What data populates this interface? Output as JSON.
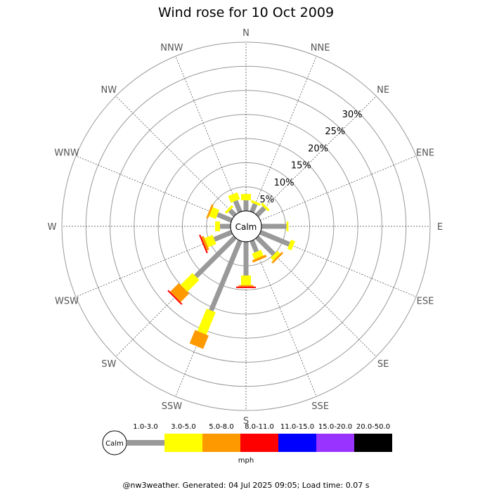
{
  "chart_data": {
    "type": "wind-rose",
    "title": "Wind rose for 10 Oct 2009",
    "directions": [
      "N",
      "NNE",
      "NE",
      "ENE",
      "E",
      "ESE",
      "SE",
      "SSE",
      "S",
      "SSW",
      "SW",
      "WSW",
      "W",
      "WNW",
      "NW",
      "NNW"
    ],
    "radial_ticks": [
      "5%",
      "10%",
      "15%",
      "20%",
      "25%",
      "30%"
    ],
    "radial_tick_values": [
      5,
      10,
      15,
      20,
      25,
      30
    ],
    "r_max_percent": 35,
    "calm_label": "Calm",
    "speed_bins": [
      {
        "label": "1.0-3.0",
        "color": "#999999"
      },
      {
        "label": "3.0-5.0",
        "color": "#ffff00"
      },
      {
        "label": "5.0-8.0",
        "color": "#ff9900"
      },
      {
        "label": "8.0-11.0",
        "color": "#ff0000"
      },
      {
        "label": "11.0-15.0",
        "color": "#0000ff"
      },
      {
        "label": "15.0-20.0",
        "color": "#9933ff"
      },
      {
        "label": "20.0-50.0",
        "color": "#000000"
      }
    ],
    "series": [
      {
        "direction": "N",
        "values": [
          2.2,
          1.3,
          0,
          0,
          0,
          0,
          0
        ]
      },
      {
        "direction": "NNE",
        "values": [
          1.8,
          0.5,
          0,
          0,
          0,
          0,
          0
        ]
      },
      {
        "direction": "NE",
        "values": [
          2.2,
          0.5,
          0,
          0,
          0,
          0,
          0
        ]
      },
      {
        "direction": "ENE",
        "values": [
          0,
          0,
          0,
          0,
          0,
          0,
          0
        ]
      },
      {
        "direction": "E",
        "values": [
          5.2,
          0.4,
          0,
          0,
          0,
          0,
          0
        ]
      },
      {
        "direction": "ESE",
        "values": [
          6.5,
          0.9,
          0,
          0,
          0,
          0,
          0
        ]
      },
      {
        "direction": "SE",
        "values": [
          5.0,
          0.8,
          0.4,
          0,
          0,
          0,
          0
        ]
      },
      {
        "direction": "SSE",
        "values": [
          2.5,
          1.3,
          0.5,
          0,
          0,
          0,
          0
        ]
      },
      {
        "direction": "S",
        "values": [
          7.0,
          2.0,
          0.3,
          0.3,
          0,
          0,
          0
        ]
      },
      {
        "direction": "SSW",
        "values": [
          15.7,
          5.0,
          3.0,
          0,
          0,
          0,
          0
        ]
      },
      {
        "direction": "SW",
        "values": [
          11.5,
          3.5,
          2.5,
          0.3,
          0,
          0,
          0
        ]
      },
      {
        "direction": "WSW",
        "values": [
          3.9,
          1.8,
          0.5,
          0.3,
          0,
          0,
          0
        ]
      },
      {
        "direction": "W",
        "values": [
          2.2,
          1.0,
          0,
          0,
          0,
          0,
          0
        ]
      },
      {
        "direction": "WNW",
        "values": [
          3.2,
          1.5,
          0.4,
          0,
          0,
          0,
          0
        ]
      },
      {
        "direction": "NW",
        "values": [
          1.5,
          0.5,
          0,
          0,
          0,
          0,
          0
        ]
      },
      {
        "direction": "NNW",
        "values": [
          2.5,
          1.5,
          0,
          0,
          0,
          0,
          0
        ]
      }
    ],
    "legend": {
      "unit": "mph",
      "placement": "bottom"
    }
  },
  "footer": {
    "text": "@nw3weather. Generated: 04 Jul 2025 09:05; Load time: 0.07 s"
  }
}
